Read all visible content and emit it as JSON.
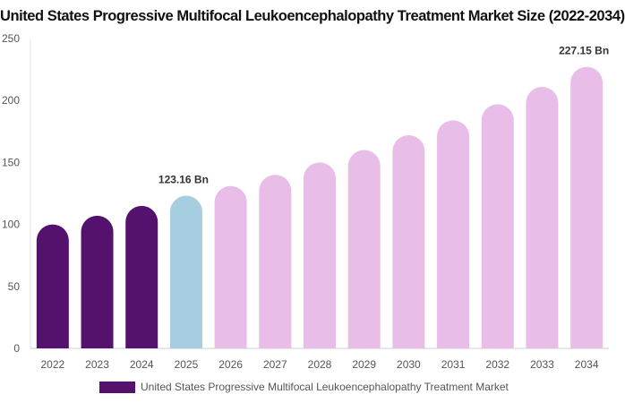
{
  "chart_data": {
    "type": "bar",
    "title": "United States Progressive Multifocal Leukoencephalopathy Treatment Market Size (2022-2034)",
    "categories": [
      "2022",
      "2023",
      "2024",
      "2025",
      "2026",
      "2027",
      "2028",
      "2029",
      "2030",
      "2031",
      "2032",
      "2033",
      "2034"
    ],
    "series": [
      {
        "name": "United States Progressive Multifocal Leukoencephalopathy Treatment Market",
        "values": [
          100,
          107,
          115,
          123.16,
          131,
          140,
          150,
          160,
          172,
          184,
          197,
          211,
          227.15
        ]
      }
    ],
    "bar_colors": [
      "#54116e",
      "#54116e",
      "#54116e",
      "#a7cde0",
      "#e8bde7",
      "#e8bde7",
      "#e8bde7",
      "#e8bde7",
      "#e8bde7",
      "#e8bde7",
      "#e8bde7",
      "#e8bde7",
      "#e8bde7"
    ],
    "legend_color": "#54116e",
    "data_labels": [
      {
        "index": 3,
        "text": "123.16 Bn"
      },
      {
        "index": 12,
        "text": "227.15 Bn"
      }
    ],
    "y_ticks": [
      "0",
      "50",
      "100",
      "150",
      "200",
      "250"
    ],
    "ylim": [
      0,
      250
    ],
    "grid": false,
    "legend_position": "bottom"
  }
}
